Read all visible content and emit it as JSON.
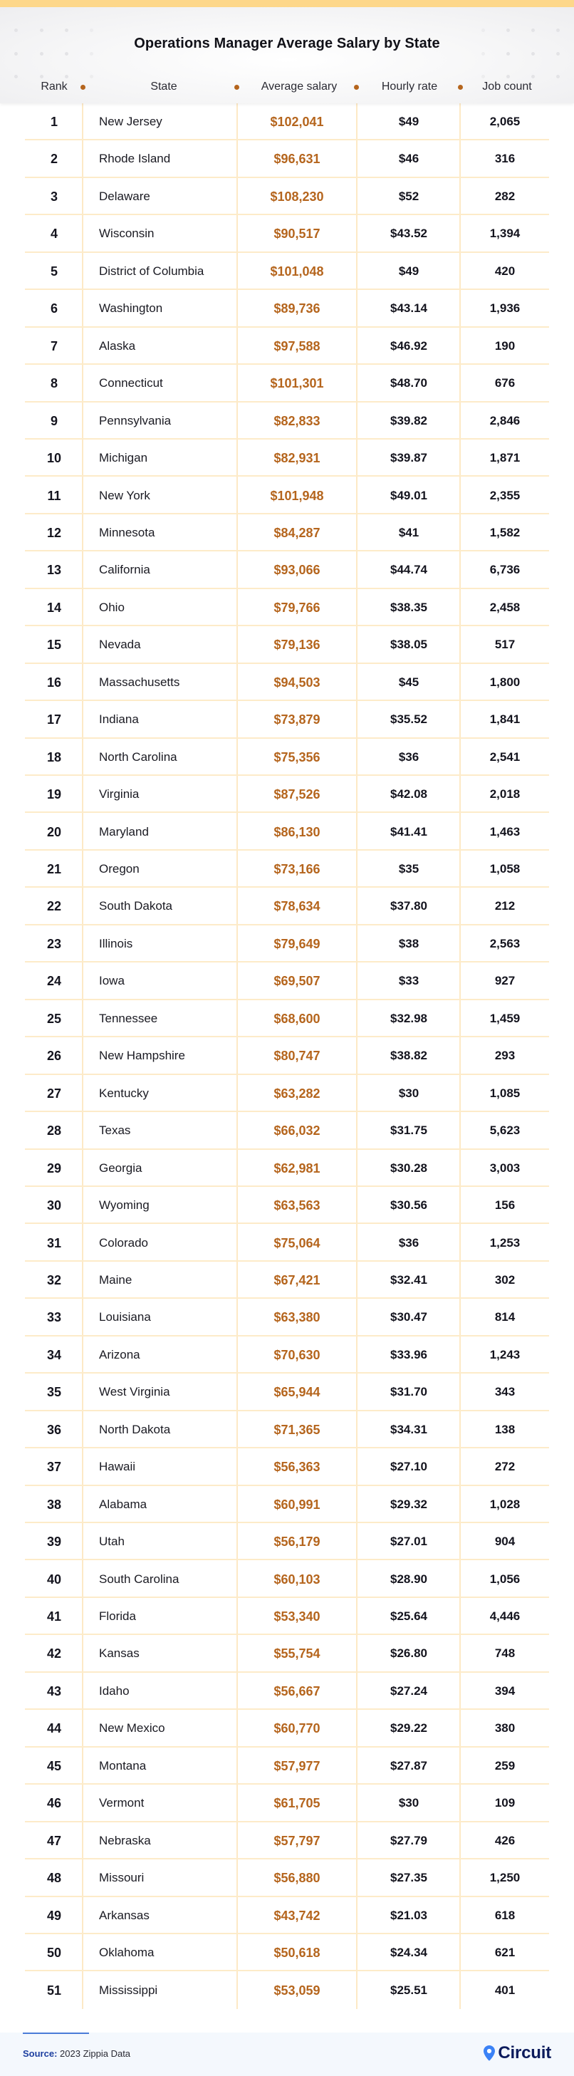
{
  "header": {
    "title": "Operations Manager Average Salary by State",
    "columns": [
      "Rank",
      "State",
      "Average salary",
      "Hourly rate",
      "Job count"
    ]
  },
  "colors": {
    "accent": "#b5651d",
    "top_band": "#fdd78a",
    "grid_line": "#fde9c6",
    "source_label": "#1d3fa0",
    "logo_pin": "#3b82f6",
    "logo_text": "#0c1b5c"
  },
  "rows": [
    {
      "rank": "1",
      "state": "New Jersey",
      "salary": "$102,041",
      "hourly": "$49",
      "jobs": "2,065"
    },
    {
      "rank": "2",
      "state": "Rhode Island",
      "salary": "$96,631",
      "hourly": "$46",
      "jobs": "316"
    },
    {
      "rank": "3",
      "state": "Delaware",
      "salary": "$108,230",
      "hourly": "$52",
      "jobs": "282"
    },
    {
      "rank": "4",
      "state": "Wisconsin",
      "salary": "$90,517",
      "hourly": "$43.52",
      "jobs": "1,394"
    },
    {
      "rank": "5",
      "state": "District of Columbia",
      "salary": "$101,048",
      "hourly": "$49",
      "jobs": "420"
    },
    {
      "rank": "6",
      "state": "Washington",
      "salary": "$89,736",
      "hourly": "$43.14",
      "jobs": "1,936"
    },
    {
      "rank": "7",
      "state": "Alaska",
      "salary": "$97,588",
      "hourly": "$46.92",
      "jobs": "190"
    },
    {
      "rank": "8",
      "state": "Connecticut",
      "salary": "$101,301",
      "hourly": "$48.70",
      "jobs": "676"
    },
    {
      "rank": "9",
      "state": "Pennsylvania",
      "salary": "$82,833",
      "hourly": "$39.82",
      "jobs": "2,846"
    },
    {
      "rank": "10",
      "state": "Michigan",
      "salary": "$82,931",
      "hourly": "$39.87",
      "jobs": "1,871"
    },
    {
      "rank": "11",
      "state": "New York",
      "salary": "$101,948",
      "hourly": "$49.01",
      "jobs": "2,355"
    },
    {
      "rank": "12",
      "state": "Minnesota",
      "salary": "$84,287",
      "hourly": "$41",
      "jobs": "1,582"
    },
    {
      "rank": "13",
      "state": "California",
      "salary": "$93,066",
      "hourly": "$44.74",
      "jobs": "6,736"
    },
    {
      "rank": "14",
      "state": "Ohio",
      "salary": "$79,766",
      "hourly": "$38.35",
      "jobs": "2,458"
    },
    {
      "rank": "15",
      "state": "Nevada",
      "salary": "$79,136",
      "hourly": "$38.05",
      "jobs": "517"
    },
    {
      "rank": "16",
      "state": "Massachusetts",
      "salary": "$94,503",
      "hourly": "$45",
      "jobs": "1,800"
    },
    {
      "rank": "17",
      "state": "Indiana",
      "salary": "$73,879",
      "hourly": "$35.52",
      "jobs": "1,841"
    },
    {
      "rank": "18",
      "state": "North Carolina",
      "salary": "$75,356",
      "hourly": "$36",
      "jobs": "2,541"
    },
    {
      "rank": "19",
      "state": "Virginia",
      "salary": "$87,526",
      "hourly": "$42.08",
      "jobs": "2,018"
    },
    {
      "rank": "20",
      "state": "Maryland",
      "salary": "$86,130",
      "hourly": "$41.41",
      "jobs": "1,463"
    },
    {
      "rank": "21",
      "state": "Oregon",
      "salary": "$73,166",
      "hourly": "$35",
      "jobs": "1,058"
    },
    {
      "rank": "22",
      "state": "South Dakota",
      "salary": "$78,634",
      "hourly": "$37.80",
      "jobs": "212"
    },
    {
      "rank": "23",
      "state": "Illinois",
      "salary": "$79,649",
      "hourly": "$38",
      "jobs": "2,563"
    },
    {
      "rank": "24",
      "state": "Iowa",
      "salary": "$69,507",
      "hourly": "$33",
      "jobs": "927"
    },
    {
      "rank": "25",
      "state": "Tennessee",
      "salary": "$68,600",
      "hourly": "$32.98",
      "jobs": "1,459"
    },
    {
      "rank": "26",
      "state": "New Hampshire",
      "salary": "$80,747",
      "hourly": "$38.82",
      "jobs": "293"
    },
    {
      "rank": "27",
      "state": "Kentucky",
      "salary": "$63,282",
      "hourly": "$30",
      "jobs": "1,085"
    },
    {
      "rank": "28",
      "state": "Texas",
      "salary": "$66,032",
      "hourly": "$31.75",
      "jobs": "5,623"
    },
    {
      "rank": "29",
      "state": "Georgia",
      "salary": "$62,981",
      "hourly": "$30.28",
      "jobs": "3,003"
    },
    {
      "rank": "30",
      "state": "Wyoming",
      "salary": "$63,563",
      "hourly": "$30.56",
      "jobs": "156"
    },
    {
      "rank": "31",
      "state": "Colorado",
      "salary": "$75,064",
      "hourly": "$36",
      "jobs": "1,253"
    },
    {
      "rank": "32",
      "state": "Maine",
      "salary": "$67,421",
      "hourly": "$32.41",
      "jobs": "302"
    },
    {
      "rank": "33",
      "state": "Louisiana",
      "salary": "$63,380",
      "hourly": "$30.47",
      "jobs": "814"
    },
    {
      "rank": "34",
      "state": "Arizona",
      "salary": "$70,630",
      "hourly": "$33.96",
      "jobs": "1,243"
    },
    {
      "rank": "35",
      "state": "West Virginia",
      "salary": "$65,944",
      "hourly": "$31.70",
      "jobs": "343"
    },
    {
      "rank": "36",
      "state": "North Dakota",
      "salary": "$71,365",
      "hourly": "$34.31",
      "jobs": "138"
    },
    {
      "rank": "37",
      "state": "Hawaii",
      "salary": "$56,363",
      "hourly": "$27.10",
      "jobs": "272"
    },
    {
      "rank": "38",
      "state": "Alabama",
      "salary": "$60,991",
      "hourly": "$29.32",
      "jobs": "1,028"
    },
    {
      "rank": "39",
      "state": "Utah",
      "salary": "$56,179",
      "hourly": "$27.01",
      "jobs": "904"
    },
    {
      "rank": "40",
      "state": "South Carolina",
      "salary": "$60,103",
      "hourly": "$28.90",
      "jobs": "1,056"
    },
    {
      "rank": "41",
      "state": "Florida",
      "salary": "$53,340",
      "hourly": "$25.64",
      "jobs": "4,446"
    },
    {
      "rank": "42",
      "state": "Kansas",
      "salary": "$55,754",
      "hourly": "$26.80",
      "jobs": "748"
    },
    {
      "rank": "43",
      "state": "Idaho",
      "salary": "$56,667",
      "hourly": "$27.24",
      "jobs": "394"
    },
    {
      "rank": "44",
      "state": "New Mexico",
      "salary": "$60,770",
      "hourly": "$29.22",
      "jobs": "380"
    },
    {
      "rank": "45",
      "state": "Montana",
      "salary": "$57,977",
      "hourly": "$27.87",
      "jobs": "259"
    },
    {
      "rank": "46",
      "state": "Vermont",
      "salary": "$61,705",
      "hourly": "$30",
      "jobs": "109"
    },
    {
      "rank": "47",
      "state": "Nebraska",
      "salary": "$57,797",
      "hourly": "$27.79",
      "jobs": "426"
    },
    {
      "rank": "48",
      "state": "Missouri",
      "salary": "$56,880",
      "hourly": "$27.35",
      "jobs": "1,250"
    },
    {
      "rank": "49",
      "state": "Arkansas",
      "salary": "$43,742",
      "hourly": "$21.03",
      "jobs": "618"
    },
    {
      "rank": "50",
      "state": "Oklahoma",
      "salary": "$50,618",
      "hourly": "$24.34",
      "jobs": "621"
    },
    {
      "rank": "51",
      "state": "Mississippi",
      "salary": "$53,059",
      "hourly": "$25.51",
      "jobs": "401"
    }
  ],
  "footer": {
    "source_label": "Source:",
    "source_text": "2023 Zippia Data",
    "logo_icon": "location-pin-icon",
    "logo_text": "Circuit"
  }
}
